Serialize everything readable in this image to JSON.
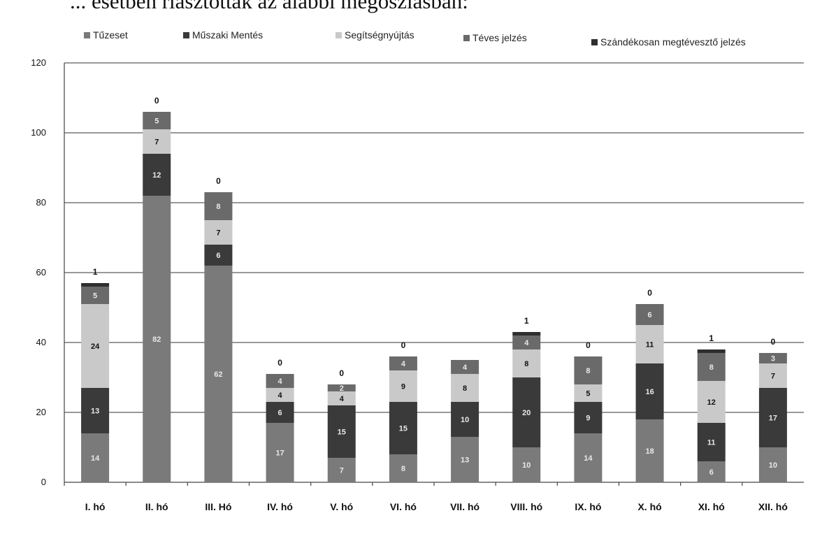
{
  "heading": "... esetben riasztották az alábbi megoszlásban:",
  "chart_data": {
    "type": "bar",
    "stacked": true,
    "title": "",
    "xlabel": "",
    "ylabel": "",
    "ylim": [
      0,
      120
    ],
    "yticks": [
      0,
      20,
      40,
      60,
      80,
      100,
      120
    ],
    "grid": true,
    "legend_position": "top",
    "categories": [
      "I. hó",
      "II. hó",
      "III.  Hó",
      "IV. hó",
      "V. hó",
      "VI. hó",
      "VII. hó",
      "VIII. hó",
      "IX. hó",
      "X. hó",
      "XI. hó",
      "XII. hó"
    ],
    "series": [
      {
        "name": "Tűzeset",
        "color": "#7a7a7a",
        "values": [
          14,
          82,
          62,
          17,
          7,
          8,
          13,
          10,
          14,
          18,
          6,
          10
        ]
      },
      {
        "name": "Műszaki Mentés",
        "color": "#3a3a3a",
        "values": [
          13,
          12,
          6,
          6,
          15,
          15,
          10,
          20,
          9,
          16,
          11,
          17
        ]
      },
      {
        "name": "Segítségnyújtás",
        "color": "#c9c9c9",
        "values": [
          24,
          7,
          7,
          4,
          4,
          9,
          8,
          8,
          5,
          11,
          12,
          7
        ]
      },
      {
        "name": "Téves jelzés",
        "color": "#6a6a6a",
        "values": [
          5,
          5,
          8,
          4,
          2,
          4,
          4,
          4,
          8,
          6,
          8,
          3
        ]
      },
      {
        "name": "Szándékosan megtévesztő jelzés",
        "color": "#2e2e2e",
        "values": [
          1,
          0,
          0,
          0,
          0,
          0,
          0,
          1,
          0,
          0,
          1,
          0
        ]
      }
    ],
    "segment_labels": [
      [
        "14",
        "13",
        "24",
        "5",
        "1"
      ],
      [
        "82",
        "12",
        "7",
        "5",
        "0"
      ],
      [
        "62",
        "6",
        "7",
        "8",
        "0"
      ],
      [
        "17",
        "6",
        "4",
        "4",
        "0"
      ],
      [
        "7",
        "15",
        "4",
        "2",
        "0"
      ],
      [
        "8",
        "15",
        "9",
        "4",
        "0"
      ],
      [
        "13",
        "10",
        "8",
        "4",
        ""
      ],
      [
        "10",
        "20",
        "8",
        "4",
        "1"
      ],
      [
        "14",
        "9",
        "5",
        "8",
        "0"
      ],
      [
        "18",
        "16",
        "11",
        "6",
        "0"
      ],
      [
        "6",
        "11",
        "12",
        "8",
        "1"
      ],
      [
        "10",
        "17",
        "7",
        "3",
        "0"
      ]
    ]
  }
}
